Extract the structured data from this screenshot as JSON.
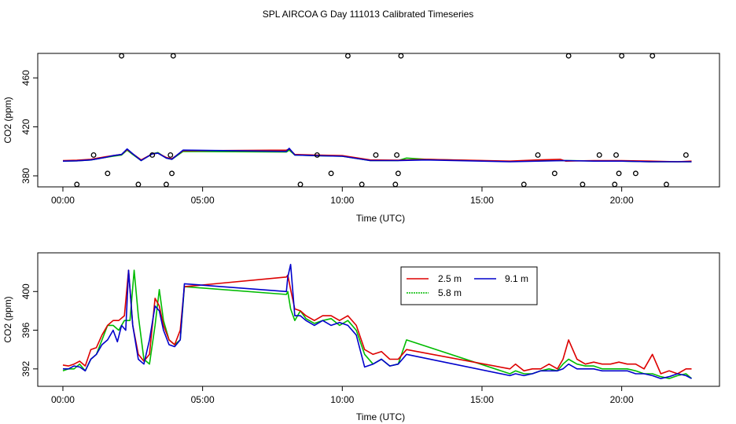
{
  "page_title": "SPL AIRCOA G  Day 111013  Calibrated Timeseries",
  "chart_data": [
    {
      "type": "line",
      "id": "top",
      "title": "SPL AIRCOA G  Day 111013  Calibrated Timeseries",
      "xlabel": "Time (UTC)",
      "ylabel": "CO2 (ppm)",
      "xlim": [
        -0.9,
        23.5
      ],
      "ylim": [
        371,
        480
      ],
      "xticks": [
        0,
        5,
        10,
        15,
        20
      ],
      "xtick_labels": [
        "00:00",
        "05:00",
        "10:00",
        "15:00",
        "20:00"
      ],
      "yticks": [
        380,
        420,
        460
      ],
      "ytick_labels": [
        "380",
        "420",
        "460"
      ],
      "series": [
        {
          "name": "2.5 m",
          "color": "#dd0000",
          "x": [
            0,
            0.5,
            1,
            1.5,
            1.8,
            2.1,
            2.3,
            2.5,
            2.8,
            3.2,
            3.4,
            3.7,
            3.9,
            4.3,
            8,
            8.1,
            8.3,
            9,
            10,
            11,
            12,
            13,
            16,
            17,
            17.8,
            18,
            19,
            20,
            21,
            22,
            22.5
          ],
          "y": [
            392.5,
            392.8,
            393.5,
            395.5,
            396.5,
            397.5,
            401.5,
            398,
            393,
            398,
            398.5,
            395,
            394,
            400.5,
            401,
            402,
            397.5,
            397,
            396.5,
            393,
            392.8,
            393.5,
            392,
            393,
            393.5,
            392,
            392.5,
            392.5,
            392,
            391.5,
            392
          ]
        },
        {
          "name": "5.8 m",
          "color": "#00bb00",
          "x": [
            0,
            0.5,
            1,
            1.5,
            1.8,
            2.1,
            2.3,
            2.5,
            2.8,
            3.2,
            3.4,
            3.7,
            3.9,
            4.3,
            8,
            8.1,
            8.3,
            9,
            10,
            11,
            12,
            12.3,
            13,
            16,
            17,
            18,
            19,
            20,
            21,
            22,
            22.5
          ],
          "y": [
            392,
            392.3,
            393,
            395,
            396,
            397,
            401,
            397.5,
            392.5,
            398,
            399,
            394.5,
            393.5,
            400,
            399.5,
            401,
            397,
            396.5,
            396,
            392.5,
            392.5,
            394.5,
            393.5,
            391.8,
            392.3,
            392.5,
            392.2,
            392,
            391.5,
            391.5,
            391.5
          ]
        },
        {
          "name": "9.1 m",
          "color": "#0000cc",
          "x": [
            0,
            0.5,
            1,
            1.5,
            1.8,
            2.1,
            2.3,
            2.5,
            2.8,
            3.2,
            3.4,
            3.7,
            3.9,
            4.3,
            8,
            8.1,
            8.3,
            9,
            10,
            11,
            12,
            13,
            16,
            17,
            18,
            19,
            20,
            21,
            22,
            22.5
          ],
          "y": [
            392,
            392.3,
            393,
            395,
            396.5,
            397.5,
            402,
            398,
            392.5,
            398,
            398.5,
            394.5,
            393.5,
            401,
            400,
            402.5,
            397,
            396.5,
            396,
            392.5,
            392.5,
            393,
            391.5,
            392,
            392.5,
            392,
            392,
            391.5,
            391.5,
            391.5
          ]
        }
      ],
      "points": {
        "x": [
          0.5,
          1.1,
          1.6,
          2.1,
          2.7,
          3.2,
          3.7,
          3.85,
          3.9,
          3.95,
          8.5,
          9.1,
          9.6,
          10.2,
          10.7,
          11.2,
          11.9,
          11.95,
          12,
          12.1,
          16.5,
          17,
          17.6,
          18.1,
          18.6,
          19.2,
          19.75,
          19.8,
          19.9,
          20,
          20.5,
          21.1,
          21.6,
          22.3
        ],
        "y": [
          373,
          397,
          382,
          478,
          373,
          397,
          373,
          397,
          382,
          478,
          373,
          397,
          382,
          478,
          373,
          397,
          373,
          397,
          382,
          478,
          373,
          397,
          382,
          478,
          373,
          397,
          373,
          397,
          382,
          478,
          382,
          478,
          373,
          397
        ]
      }
    },
    {
      "type": "line",
      "id": "bottom",
      "xlabel": "Time (UTC)",
      "ylabel": "CO2 (ppm)",
      "xlim": [
        -0.9,
        23.5
      ],
      "ylim": [
        390.2,
        404
      ],
      "xticks": [
        0,
        5,
        10,
        15,
        20
      ],
      "xtick_labels": [
        "00:00",
        "05:00",
        "10:00",
        "15:00",
        "20:00"
      ],
      "yticks": [
        392,
        396,
        400
      ],
      "ytick_labels": [
        "392",
        "396",
        "400"
      ],
      "legend": {
        "position": "top-center",
        "entries": [
          "2.5 m",
          "5.8 m",
          "9.1 m"
        ]
      },
      "series": [
        {
          "name": "2.5 m",
          "color": "#dd0000",
          "x": [
            0,
            0.2,
            0.4,
            0.6,
            0.8,
            1,
            1.2,
            1.4,
            1.6,
            1.8,
            2,
            2.2,
            2.35,
            2.5,
            2.7,
            2.9,
            3.1,
            3.3,
            3.45,
            3.6,
            3.8,
            4,
            4.2,
            4.35,
            8,
            8.05,
            8.15,
            8.3,
            8.5,
            8.7,
            9,
            9.3,
            9.6,
            9.9,
            10.2,
            10.5,
            10.8,
            11.1,
            11.4,
            11.7,
            12,
            12.3,
            16,
            16.2,
            16.5,
            16.8,
            17.1,
            17.4,
            17.7,
            17.9,
            18.1,
            18.4,
            18.7,
            19,
            19.3,
            19.6,
            19.9,
            20.2,
            20.5,
            20.8,
            21.1,
            21.4,
            21.7,
            22,
            22.3,
            22.5
          ],
          "y": [
            392.4,
            392.3,
            392.5,
            392.8,
            392.3,
            394,
            394.2,
            395.5,
            396.5,
            397,
            397,
            397.5,
            402.2,
            396.5,
            393.5,
            392.8,
            393.5,
            399.3,
            398.5,
            396.5,
            395,
            394.5,
            396,
            400.5,
            401.5,
            401.7,
            400.2,
            398.2,
            398,
            397.5,
            397,
            397.5,
            397.5,
            397,
            397.5,
            396.5,
            394,
            393.5,
            393.8,
            393,
            393,
            394,
            392,
            392.5,
            391.8,
            392,
            392,
            392.5,
            392,
            393,
            395,
            393,
            392.5,
            392.7,
            392.5,
            392.5,
            392.7,
            392.5,
            392.5,
            392,
            393.5,
            391.5,
            391.8,
            391.5,
            392,
            392
          ]
        },
        {
          "name": "5.8 m",
          "color": "#00bb00",
          "x": [
            0,
            0.2,
            0.4,
            0.6,
            0.8,
            1,
            1.2,
            1.4,
            1.6,
            1.8,
            2,
            2.2,
            2.4,
            2.55,
            2.7,
            2.9,
            3.1,
            3.3,
            3.45,
            3.6,
            3.8,
            4,
            4.2,
            4.35,
            8,
            8.05,
            8.15,
            8.3,
            8.5,
            8.7,
            9,
            9.3,
            9.6,
            9.9,
            10.2,
            10.5,
            10.8,
            11.1,
            11.4,
            11.7,
            12,
            12.3,
            16,
            16.2,
            16.5,
            16.8,
            17.1,
            17.4,
            17.7,
            17.9,
            18.1,
            18.4,
            18.7,
            19,
            19.3,
            19.6,
            19.9,
            20.2,
            20.5,
            20.8,
            21.1,
            21.4,
            21.7,
            22,
            22.3,
            22.5
          ],
          "y": [
            391.8,
            392,
            392,
            392.5,
            391.8,
            393,
            393.5,
            395,
            396.5,
            396.5,
            396,
            397,
            397,
            402.2,
            397.5,
            393,
            392.5,
            396.5,
            400.2,
            397,
            395,
            394.5,
            395,
            400.5,
            399.7,
            400,
            398.2,
            397,
            398,
            397.2,
            396.7,
            397,
            397.2,
            396.5,
            397,
            396,
            393.5,
            392.5,
            393,
            392.3,
            392.5,
            395,
            391.5,
            391.8,
            391.5,
            391.5,
            391.8,
            392,
            391.8,
            392.5,
            393,
            392.5,
            392.3,
            392.3,
            392,
            392,
            392,
            392,
            391.8,
            391.5,
            391.5,
            391.2,
            391,
            391.3,
            391.5,
            391
          ]
        },
        {
          "name": "9.1 m",
          "color": "#0000cc",
          "x": [
            0,
            0.2,
            0.4,
            0.6,
            0.8,
            1,
            1.2,
            1.4,
            1.6,
            1.8,
            1.95,
            2.1,
            2.25,
            2.35,
            2.5,
            2.7,
            2.9,
            3.1,
            3.3,
            3.45,
            3.6,
            3.8,
            4,
            4.2,
            4.35,
            8,
            8.05,
            8.15,
            8.3,
            8.5,
            8.7,
            9,
            9.3,
            9.6,
            9.9,
            10.2,
            10.5,
            10.8,
            11.1,
            11.4,
            11.7,
            12,
            12.3,
            16,
            16.2,
            16.5,
            16.8,
            17.1,
            17.4,
            17.7,
            17.9,
            18.1,
            18.4,
            18.7,
            19,
            19.3,
            19.6,
            19.9,
            20.2,
            20.5,
            20.8,
            21.1,
            21.4,
            21.7,
            22,
            22.3,
            22.5
          ],
          "y": [
            392,
            392,
            392.3,
            392.2,
            391.8,
            393,
            393.5,
            394.5,
            395,
            396,
            394.8,
            396.5,
            396,
            402.2,
            396.5,
            393,
            392.5,
            395,
            398.5,
            398,
            396,
            394.5,
            394.3,
            395,
            400.8,
            400,
            401.5,
            402.8,
            397.5,
            397.5,
            397,
            396.5,
            397,
            396.5,
            396.8,
            396.5,
            395.5,
            392.2,
            392.5,
            393,
            392.3,
            392.5,
            393.5,
            391.3,
            391.5,
            391.3,
            391.5,
            391.8,
            391.8,
            391.8,
            392,
            392.5,
            392,
            392,
            392,
            391.8,
            391.8,
            391.8,
            391.8,
            391.5,
            391.5,
            391.3,
            391,
            391.2,
            391.5,
            391.3,
            391
          ]
        }
      ]
    }
  ]
}
